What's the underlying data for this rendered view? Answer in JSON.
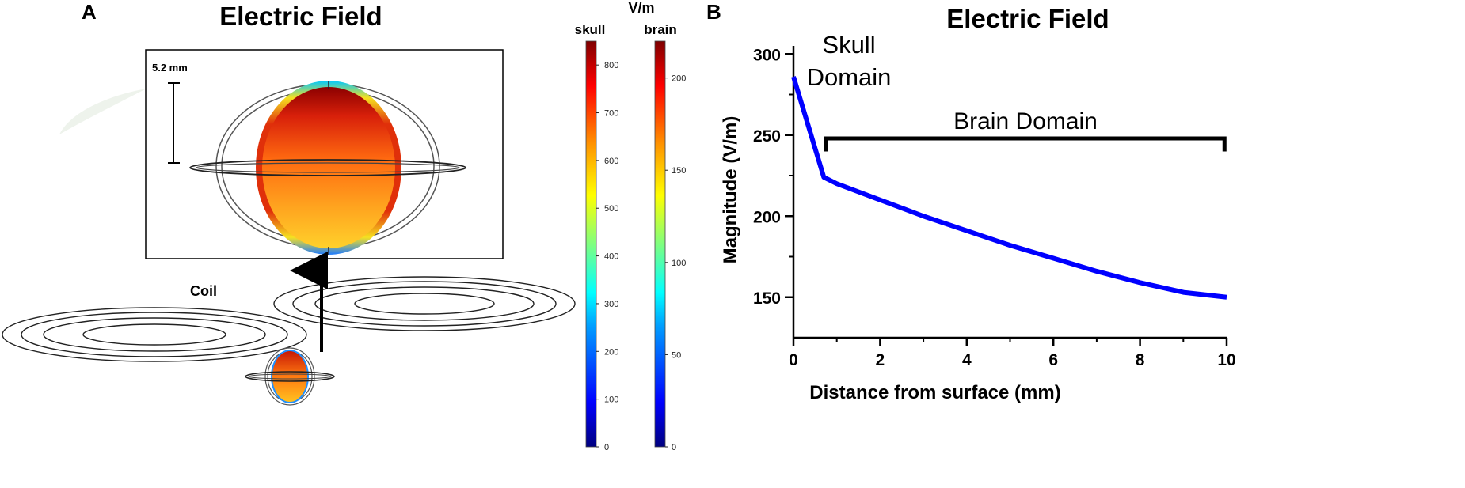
{
  "panel_a": {
    "label": "A",
    "title": "Electric Field",
    "scale_bar_label": "5.2 mm",
    "coil_label": "Coil",
    "colorbar_unit": "V/m",
    "skull_bar": {
      "title": "skull",
      "ticks": [
        "800",
        "700",
        "600",
        "500",
        "400",
        "300",
        "200",
        "100",
        "0"
      ],
      "range": [
        0,
        850
      ]
    },
    "brain_bar": {
      "title": "brain",
      "ticks": [
        "200",
        "150",
        "100",
        "50",
        "0"
      ],
      "range": [
        0,
        220
      ]
    },
    "colormap": [
      "#00007f",
      "#0000ff",
      "#00a0ff",
      "#00ffff",
      "#7fff7f",
      "#ffff00",
      "#ff9000",
      "#ff0000",
      "#7f0000"
    ]
  },
  "panel_b": {
    "label": "B"
  },
  "chart_data": {
    "type": "line",
    "title": "Electric Field",
    "xlabel": "Distance from surface (mm)",
    "ylabel": "Magnitude (V/m)",
    "xlim": [
      0,
      10
    ],
    "ylim": [
      125,
      305
    ],
    "xticks": [
      0,
      2,
      4,
      6,
      8,
      10
    ],
    "xtick_labels": [
      "0",
      "2",
      "4",
      "6",
      "8",
      "10"
    ],
    "yticks": [
      150,
      200,
      250,
      300
    ],
    "ytick_labels": [
      "150",
      "200",
      "250",
      "300"
    ],
    "series": [
      {
        "color": "#0000ff",
        "x": [
          0,
          0.7,
          1,
          2,
          3,
          4,
          5,
          6,
          7,
          8,
          9,
          10
        ],
        "y": [
          286,
          224,
          220,
          210,
          200,
          191,
          182,
          174,
          166,
          159,
          153,
          150
        ]
      }
    ],
    "annotations": [
      {
        "text_line1": "Skull",
        "text_line2": "Domain"
      },
      {
        "text": "Brain Domain",
        "x_range": [
          0.75,
          9.95
        ]
      }
    ]
  }
}
